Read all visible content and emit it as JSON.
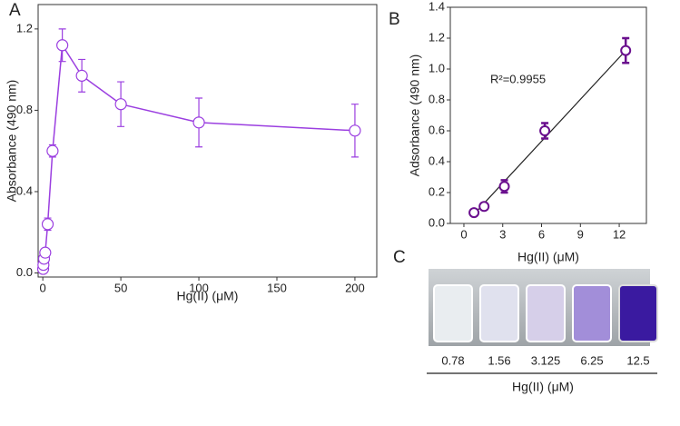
{
  "chart_data": [
    {
      "type": "line",
      "panel": "A",
      "ylabel": "Absorbance (490 nm)",
      "xlabel": "Hg(II) (μM)",
      "x": [
        0.2,
        0.39,
        0.78,
        1.56,
        3.125,
        6.25,
        12.5,
        25,
        50,
        100,
        200
      ],
      "values": [
        0.02,
        0.04,
        0.07,
        0.1,
        0.24,
        0.6,
        1.12,
        0.97,
        0.83,
        0.74,
        0.7
      ],
      "errors": [
        0.01,
        0.01,
        0.01,
        0.02,
        0.03,
        0.03,
        0.08,
        0.08,
        0.11,
        0.12,
        0.13
      ],
      "color": "#9b3fe0",
      "xlim": [
        -3,
        214
      ],
      "ylim": [
        -0.02,
        1.32
      ],
      "xticks": [
        0,
        50,
        100,
        150,
        200
      ],
      "yticks": [
        {
          "value": 0,
          "label": "0.0"
        },
        0.4,
        0.8,
        1.2
      ]
    },
    {
      "type": "scatter",
      "panel": "B",
      "ylabel": "Adsorbance (490 nm)",
      "xlabel": "Hg(II) (μM)",
      "annotation": "R²=0.9955",
      "x": [
        0.78,
        1.56,
        3.125,
        6.25,
        12.5
      ],
      "values": [
        0.07,
        0.11,
        0.24,
        0.6,
        1.12
      ],
      "errors": [
        0.01,
        0.02,
        0.04,
        0.05,
        0.08
      ],
      "color": "#6a0f8e",
      "trendline": {
        "x": [
          0.78,
          12.5
        ],
        "values": [
          0.06,
          1.12
        ],
        "color": "#222222"
      },
      "xlim": [
        -1.05,
        14.1
      ],
      "ylim": [
        0,
        1.4
      ],
      "xticks": [
        0,
        3,
        6,
        9,
        12
      ],
      "yticks": [
        {
          "value": 0,
          "label": "0.0"
        },
        0.2,
        0.4,
        0.6,
        0.8,
        {
          "value": 1,
          "label": "1.0"
        },
        1.2,
        1.4
      ]
    }
  ],
  "photo": {
    "panel": "C",
    "concentrations": [
      "0.78",
      "1.56",
      "3.125",
      "6.25",
      "12.5"
    ],
    "xlabel": "Hg(II) (μM)"
  }
}
